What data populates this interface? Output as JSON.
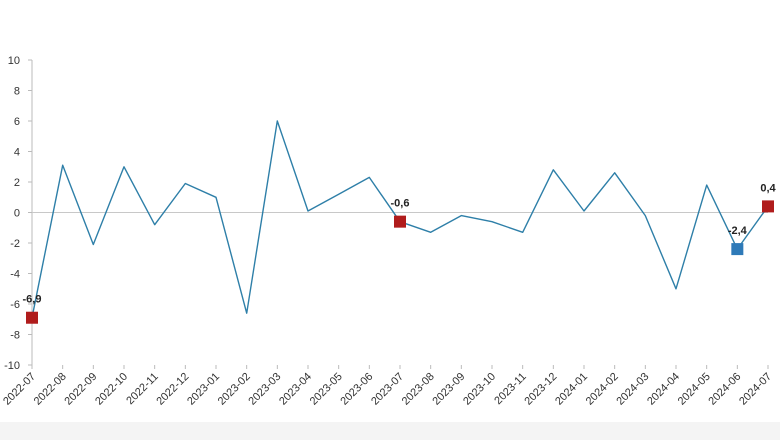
{
  "chart_data": {
    "type": "line",
    "x": [
      "2022-07",
      "2022-08",
      "2022-09",
      "2022-10",
      "2022-11",
      "2022-12",
      "2023-01",
      "2023-02",
      "2023-03",
      "2023-04",
      "2023-05",
      "2023-06",
      "2023-07",
      "2023-08",
      "2023-09",
      "2023-10",
      "2023-11",
      "2023-12",
      "2024-01",
      "2024-02",
      "2024-03",
      "2024-04",
      "2024-05",
      "2024-06",
      "2024-07"
    ],
    "series": [
      {
        "values": [
          -6.9,
          3.1,
          -2.1,
          3.0,
          -0.8,
          1.9,
          1.0,
          -6.6,
          6.0,
          0.1,
          1.2,
          2.3,
          -0.6,
          -1.3,
          -0.2,
          -0.6,
          -1.3,
          2.8,
          0.1,
          2.6,
          -0.2,
          -5.0,
          1.8,
          -2.4,
          0.4
        ],
        "color": "#2e7fa8"
      }
    ],
    "ylim": [
      -10,
      10
    ],
    "yticks": [
      "10",
      "8",
      "6",
      "4",
      "2",
      "0",
      "-2",
      "-4",
      "-6",
      "-8",
      "-10"
    ],
    "ytick_values": [
      10,
      8,
      6,
      4,
      2,
      0,
      -2,
      -4,
      -6,
      -8,
      -10
    ],
    "zero_line": true,
    "grid": false,
    "highlights": [
      {
        "index": 0,
        "label": "-6,9",
        "color": "#b01c1c"
      },
      {
        "index": 12,
        "label": "-0,6",
        "color": "#b01c1c"
      },
      {
        "index": 23,
        "label": "-2,4",
        "color": "#2e7ab8"
      },
      {
        "index": 24,
        "label": "0,4",
        "color": "#b01c1c"
      }
    ]
  }
}
